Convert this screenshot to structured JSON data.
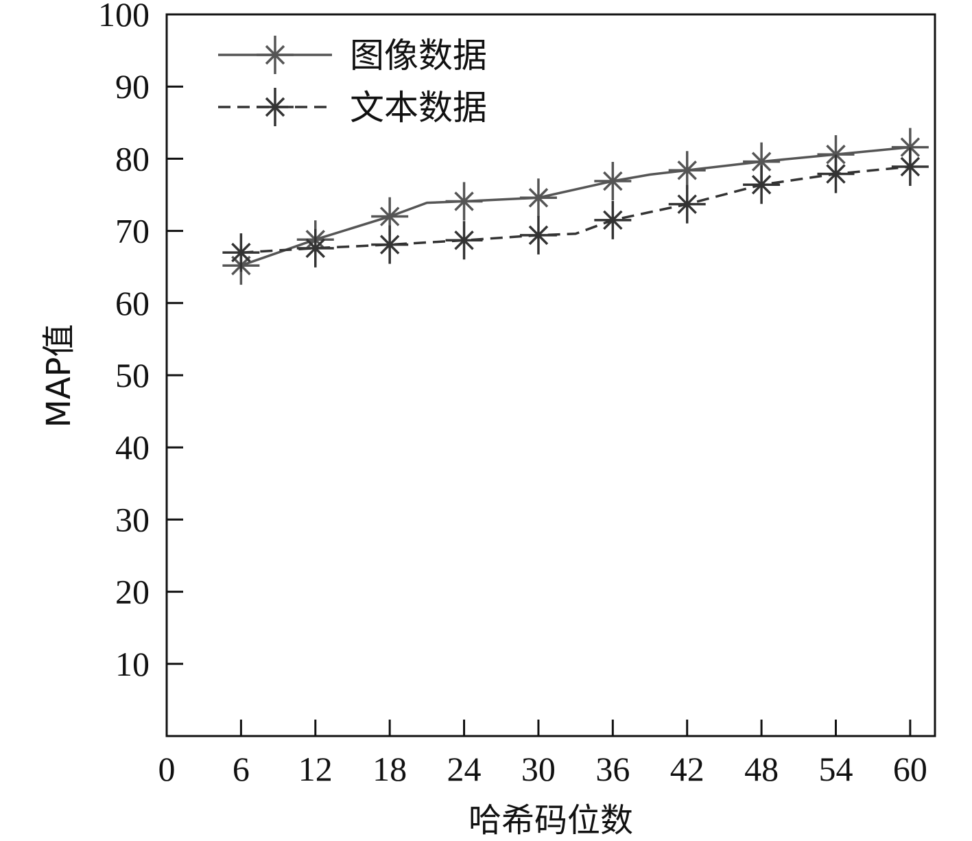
{
  "chart_data": {
    "type": "line",
    "xlabel": "哈希码位数",
    "ylabel": "MAP值",
    "xlim": [
      0,
      62
    ],
    "ylim": [
      0,
      100
    ],
    "x_ticks": [
      0,
      6,
      12,
      18,
      24,
      30,
      36,
      42,
      48,
      54,
      60
    ],
    "y_ticks": [
      10,
      20,
      30,
      40,
      50,
      60,
      70,
      80,
      90,
      100
    ],
    "grid": false,
    "legend_position": "top-left",
    "series": [
      {
        "name": "图像数据",
        "line_style": "solid",
        "color": "#555555",
        "marker": "asterisk",
        "points": [
          {
            "x": 6,
            "y": 65.2
          },
          {
            "x": 12,
            "y": 68.8
          },
          {
            "x": 18,
            "y": 72.0
          },
          {
            "x": 21,
            "y": 73.9
          },
          {
            "x": 24,
            "y": 74.1
          },
          {
            "x": 30,
            "y": 74.6
          },
          {
            "x": 36,
            "y": 76.9
          },
          {
            "x": 39,
            "y": 77.8
          },
          {
            "x": 42,
            "y": 78.4
          },
          {
            "x": 48,
            "y": 79.6
          },
          {
            "x": 54,
            "y": 80.6
          },
          {
            "x": 60,
            "y": 81.6
          }
        ],
        "marker_x": [
          6,
          12,
          18,
          24,
          30,
          36,
          42,
          48,
          54,
          60
        ]
      },
      {
        "name": "文本数据",
        "line_style": "dashed",
        "color": "#333333",
        "marker": "asterisk",
        "points": [
          {
            "x": 6,
            "y": 67.0
          },
          {
            "x": 12,
            "y": 67.6
          },
          {
            "x": 18,
            "y": 68.1
          },
          {
            "x": 24,
            "y": 68.7
          },
          {
            "x": 30,
            "y": 69.4
          },
          {
            "x": 33,
            "y": 69.6
          },
          {
            "x": 36,
            "y": 71.5
          },
          {
            "x": 42,
            "y": 73.7
          },
          {
            "x": 48,
            "y": 76.4
          },
          {
            "x": 54,
            "y": 77.9
          },
          {
            "x": 60,
            "y": 78.9
          }
        ],
        "marker_x": [
          6,
          12,
          18,
          24,
          30,
          36,
          42,
          48,
          54,
          60
        ]
      }
    ]
  }
}
